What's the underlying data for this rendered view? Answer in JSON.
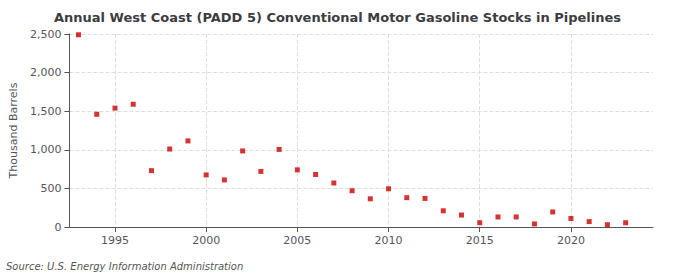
{
  "chart_data": {
    "type": "scatter",
    "title": "Annual West Coast (PADD 5) Conventional Motor Gasoline Stocks in Pipelines",
    "ylabel": "Thousand Barrels",
    "source": "Source: U.S. Energy Information Administration",
    "x": [
      1993,
      1994,
      1995,
      1996,
      1997,
      1998,
      1999,
      2000,
      2001,
      2002,
      2003,
      2004,
      2005,
      2006,
      2007,
      2008,
      2009,
      2010,
      2011,
      2012,
      2013,
      2014,
      2015,
      2016,
      2017,
      2018,
      2019,
      2020,
      2021,
      2022,
      2023
    ],
    "values": [
      2490,
      1460,
      1540,
      1590,
      730,
      1010,
      1115,
      675,
      610,
      985,
      720,
      1005,
      740,
      680,
      570,
      470,
      365,
      495,
      380,
      370,
      210,
      155,
      55,
      130,
      130,
      40,
      195,
      110,
      70,
      30,
      55
    ],
    "color": "#cc0000",
    "marker": "square",
    "xlim": [
      1992.5,
      2024.5
    ],
    "xticks": [
      1995,
      2000,
      2005,
      2010,
      2015,
      2020
    ],
    "ylim": [
      0,
      2500
    ],
    "yticks": [
      0,
      500,
      {
        "value": 1000,
        "label": "1,000"
      },
      {
        "value": 1500,
        "label": "1,500"
      },
      {
        "value": 2000,
        "label": "2,000"
      },
      {
        "value": 2500,
        "label": "2,500"
      }
    ],
    "grid": true
  }
}
